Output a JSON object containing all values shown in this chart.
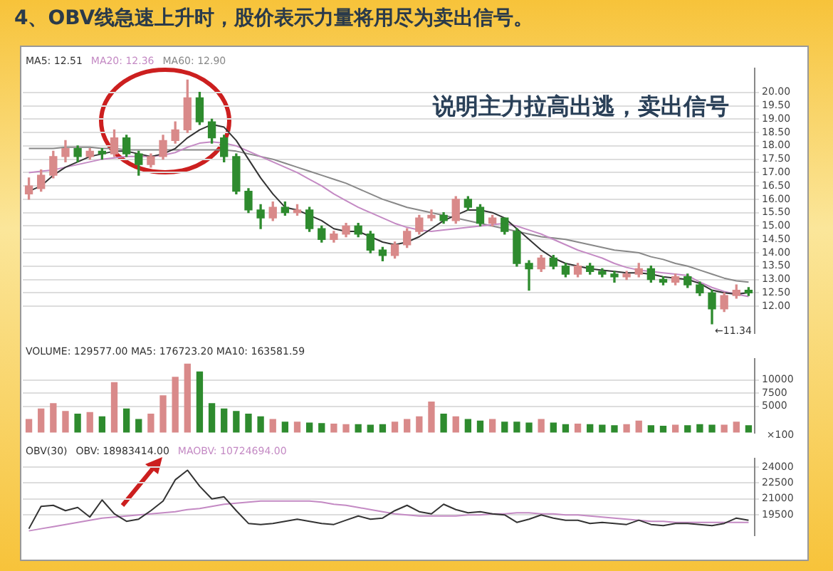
{
  "chart_data": [
    {
      "type": "candlestick",
      "title": "4、OBV线急速上升时，股价表示力量将用尽为卖出信号。",
      "subtitle": "说明主力拉高出逃，卖出信号",
      "categories": [
        null,
        null,
        null,
        null,
        null,
        null,
        null,
        null,
        null,
        null,
        null,
        null,
        null,
        null,
        null,
        null,
        null,
        null,
        null,
        null,
        null,
        null,
        null,
        null,
        null,
        null,
        null,
        null,
        null,
        null,
        null,
        null,
        null,
        null,
        null,
        null,
        null,
        null,
        null,
        null,
        null,
        null,
        null,
        null,
        null,
        null,
        null,
        null,
        null,
        null,
        null,
        null,
        null,
        null,
        null,
        null,
        null,
        null,
        null,
        null
      ],
      "ohlc": [
        [
          16.2,
          16.8,
          16.0,
          16.5
        ],
        [
          16.4,
          17.1,
          16.3,
          16.9
        ],
        [
          16.9,
          17.8,
          16.8,
          17.6
        ],
        [
          17.6,
          18.2,
          17.4,
          17.9
        ],
        [
          17.9,
          18.0,
          17.4,
          17.6
        ],
        [
          17.6,
          17.9,
          17.5,
          17.8
        ],
        [
          17.8,
          17.9,
          17.5,
          17.7
        ],
        [
          17.7,
          18.6,
          17.6,
          18.3
        ],
        [
          18.3,
          18.4,
          17.6,
          17.7
        ],
        [
          17.7,
          17.8,
          16.9,
          17.3
        ],
        [
          17.3,
          17.7,
          17.2,
          17.6
        ],
        [
          17.6,
          18.4,
          17.5,
          18.2
        ],
        [
          18.2,
          18.9,
          18.1,
          18.6
        ],
        [
          18.6,
          20.46,
          18.5,
          19.8
        ],
        [
          19.8,
          20.0,
          18.8,
          18.9
        ],
        [
          18.9,
          19.0,
          18.1,
          18.3
        ],
        [
          18.3,
          18.4,
          17.4,
          17.6
        ],
        [
          17.6,
          17.7,
          16.2,
          16.3
        ],
        [
          16.3,
          16.4,
          15.5,
          15.6
        ],
        [
          15.6,
          15.8,
          14.9,
          15.3
        ],
        [
          15.3,
          15.9,
          15.2,
          15.7
        ],
        [
          15.7,
          15.9,
          15.4,
          15.5
        ],
        [
          15.5,
          15.8,
          15.4,
          15.6
        ],
        [
          15.6,
          15.7,
          14.8,
          14.9
        ],
        [
          14.9,
          15.0,
          14.4,
          14.5
        ],
        [
          14.5,
          14.8,
          14.4,
          14.7
        ],
        [
          14.7,
          15.1,
          14.6,
          15.0
        ],
        [
          15.0,
          15.1,
          14.6,
          14.7
        ],
        [
          14.7,
          14.8,
          14.0,
          14.1
        ],
        [
          14.1,
          14.2,
          13.7,
          13.9
        ],
        [
          13.9,
          14.4,
          13.8,
          14.3
        ],
        [
          14.3,
          14.9,
          14.2,
          14.8
        ],
        [
          14.8,
          15.4,
          14.7,
          15.3
        ],
        [
          15.3,
          15.6,
          15.2,
          15.4
        ],
        [
          15.4,
          15.5,
          15.1,
          15.2
        ],
        [
          15.2,
          16.1,
          15.1,
          16.0
        ],
        [
          16.0,
          16.1,
          15.6,
          15.7
        ],
        [
          15.7,
          15.8,
          15.0,
          15.1
        ],
        [
          15.1,
          15.4,
          15.0,
          15.3
        ],
        [
          15.3,
          15.3,
          14.7,
          14.8
        ],
        [
          14.8,
          14.9,
          13.5,
          13.6
        ],
        [
          13.6,
          13.7,
          12.6,
          13.4
        ],
        [
          13.4,
          13.9,
          13.3,
          13.8
        ],
        [
          13.8,
          13.9,
          13.4,
          13.5
        ],
        [
          13.5,
          13.6,
          13.1,
          13.2
        ],
        [
          13.2,
          13.6,
          13.1,
          13.5
        ],
        [
          13.5,
          13.6,
          13.2,
          13.3
        ],
        [
          13.3,
          13.4,
          13.1,
          13.2
        ],
        [
          13.2,
          13.3,
          12.9,
          13.1
        ],
        [
          13.1,
          13.3,
          13.0,
          13.2
        ],
        [
          13.2,
          13.6,
          13.1,
          13.4
        ],
        [
          13.4,
          13.5,
          12.9,
          13.0
        ],
        [
          13.0,
          13.1,
          12.8,
          12.9
        ],
        [
          12.9,
          13.2,
          12.8,
          13.1
        ],
        [
          13.1,
          13.2,
          12.7,
          12.8
        ],
        [
          12.8,
          12.9,
          12.4,
          12.5
        ],
        [
          12.5,
          12.6,
          11.34,
          11.9
        ],
        [
          11.9,
          12.5,
          11.8,
          12.4
        ],
        [
          12.4,
          12.8,
          12.3,
          12.6
        ],
        [
          12.6,
          12.7,
          12.4,
          12.5
        ]
      ],
      "colors": [
        "#d98a8a",
        "#d98a8a",
        "#d98a8a",
        "#d98a8a",
        "#2e8b2e",
        "#d98a8a",
        "#2e8b2e",
        "#d98a8a",
        "#2e8b2e",
        "#2e8b2e",
        "#d98a8a",
        "#d98a8a",
        "#d98a8a",
        "#d98a8a",
        "#2e8b2e",
        "#2e8b2e",
        "#2e8b2e",
        "#2e8b2e",
        "#2e8b2e",
        "#2e8b2e",
        "#d98a8a",
        "#2e8b2e",
        "#d98a8a",
        "#2e8b2e",
        "#2e8b2e",
        "#d98a8a",
        "#d98a8a",
        "#2e8b2e",
        "#2e8b2e",
        "#2e8b2e",
        "#d98a8a",
        "#d98a8a",
        "#d98a8a",
        "#d98a8a",
        "#2e8b2e",
        "#d98a8a",
        "#2e8b2e",
        "#2e8b2e",
        "#d98a8a",
        "#2e8b2e",
        "#2e8b2e",
        "#2e8b2e",
        "#d98a8a",
        "#2e8b2e",
        "#2e8b2e",
        "#d98a8a",
        "#2e8b2e",
        "#2e8b2e",
        "#2e8b2e",
        "#d98a8a",
        "#d98a8a",
        "#2e8b2e",
        "#2e8b2e",
        "#d98a8a",
        "#2e8b2e",
        "#2e8b2e",
        "#2e8b2e",
        "#d98a8a",
        "#d98a8a",
        "#2e8b2e"
      ],
      "series": [
        {
          "name": "MA5: 12.51",
          "type": "line",
          "color": "#333333",
          "values": [
            16.3,
            16.5,
            16.9,
            17.2,
            17.4,
            17.6,
            17.7,
            17.8,
            17.8,
            17.7,
            17.6,
            17.7,
            17.9,
            18.3,
            18.6,
            18.8,
            18.7,
            18.2,
            17.5,
            16.8,
            16.2,
            15.7,
            15.6,
            15.4,
            15.2,
            14.9,
            14.8,
            14.8,
            14.6,
            14.4,
            14.3,
            14.4,
            14.6,
            14.9,
            15.2,
            15.4,
            15.6,
            15.6,
            15.5,
            15.3,
            14.9,
            14.5,
            14.1,
            13.8,
            13.6,
            13.5,
            13.4,
            13.35,
            13.3,
            13.25,
            13.25,
            13.2,
            13.1,
            13.05,
            13.0,
            12.85,
            12.6,
            12.5,
            12.45,
            12.51
          ]
        },
        {
          "name": "MA20: 12.36",
          "type": "line",
          "color": "#c48ac4",
          "values": [
            17.0,
            17.05,
            17.1,
            17.2,
            17.3,
            17.4,
            17.5,
            17.55,
            17.6,
            17.6,
            17.6,
            17.65,
            17.75,
            17.95,
            18.1,
            18.15,
            18.1,
            18.0,
            17.8,
            17.6,
            17.4,
            17.2,
            17.0,
            16.75,
            16.5,
            16.2,
            15.95,
            15.7,
            15.5,
            15.3,
            15.1,
            14.95,
            14.85,
            14.8,
            14.85,
            14.9,
            14.95,
            15.0,
            15.05,
            15.1,
            15.0,
            14.85,
            14.7,
            14.5,
            14.3,
            14.1,
            13.95,
            13.8,
            13.6,
            13.45,
            13.35,
            13.3,
            13.25,
            13.2,
            13.15,
            12.9,
            12.7,
            12.55,
            12.45,
            12.36
          ]
        },
        {
          "name": "MA60: 12.90",
          "type": "line",
          "color": "#888888",
          "values": [
            17.9,
            17.9,
            17.9,
            17.95,
            17.95,
            17.95,
            17.9,
            17.9,
            17.85,
            17.85,
            17.85,
            17.85,
            17.85,
            17.85,
            17.85,
            17.85,
            17.85,
            17.8,
            17.7,
            17.6,
            17.5,
            17.35,
            17.2,
            17.05,
            16.9,
            16.75,
            16.6,
            16.4,
            16.2,
            16.0,
            15.85,
            15.7,
            15.6,
            15.5,
            15.4,
            15.3,
            15.2,
            15.1,
            15.0,
            14.9,
            14.8,
            14.7,
            14.6,
            14.55,
            14.5,
            14.4,
            14.3,
            14.2,
            14.1,
            14.05,
            14.0,
            13.85,
            13.75,
            13.6,
            13.5,
            13.35,
            13.2,
            13.05,
            12.95,
            12.9
          ]
        }
      ],
      "annotations": [
        "←11.34"
      ],
      "ylim": [
        11.0,
        20.9
      ],
      "yticks": [
        {
          "value": 12,
          "label": "12.00"
        },
        {
          "value": 12.5,
          "label": "12.50"
        },
        {
          "value": 13,
          "label": "13.00"
        },
        {
          "value": 13.5,
          "label": "13.50"
        },
        {
          "value": 14,
          "label": "14.00"
        },
        {
          "value": 14.5,
          "label": "14.50"
        },
        {
          "value": 15,
          "label": "15.00"
        },
        {
          "value": 15.5,
          "label": "15.50"
        },
        {
          "value": 16,
          "label": "16.00"
        },
        {
          "value": 16.5,
          "label": "16.50"
        },
        {
          "value": 17,
          "label": "17.00"
        },
        {
          "value": 17.5,
          "label": "17.50"
        },
        {
          "value": 18,
          "label": "18.00"
        },
        {
          "value": 18.5,
          "label": "18.50"
        },
        {
          "value": 19,
          "label": "19.00"
        },
        {
          "value": 19.5,
          "label": "19.50"
        },
        {
          "value": 20,
          "label": "20.00"
        }
      ],
      "grid": "y",
      "legend": "top left",
      "tick_labels": "y",
      "marker": "none"
    },
    {
      "type": "bar",
      "ylabel": "×100",
      "categories": [
        null,
        null,
        null,
        null,
        null,
        null,
        null,
        null,
        null,
        null,
        null,
        null,
        null,
        null,
        null,
        null,
        null,
        null,
        null,
        null,
        null,
        null,
        null,
        null,
        null,
        null,
        null,
        null,
        null,
        null,
        null,
        null,
        null,
        null,
        null,
        null,
        null,
        null,
        null,
        null,
        null,
        null,
        null,
        null,
        null,
        null,
        null,
        null,
        null,
        null,
        null,
        null,
        null,
        null,
        null,
        null,
        null,
        null,
        null,
        null
      ],
      "values": [
        2500,
        4500,
        5500,
        4000,
        3500,
        3800,
        3000,
        9500,
        4500,
        2500,
        3500,
        7000,
        10500,
        13000,
        11500,
        5500,
        4500,
        4000,
        3500,
        3000,
        2500,
        2000,
        2000,
        1800,
        1700,
        1600,
        1500,
        1500,
        1400,
        1500,
        2000,
        2500,
        3000,
        5800,
        3500,
        3000,
        2500,
        2200,
        2500,
        2000,
        2000,
        1800,
        2500,
        1800,
        1500,
        1600,
        1500,
        1400,
        1300,
        1500,
        2200,
        1300,
        1200,
        1400,
        1300,
        1500,
        1400,
        1400,
        2000,
        1300
      ],
      "colors": [
        "#d98a8a",
        "#d98a8a",
        "#d98a8a",
        "#d98a8a",
        "#2e8b2e",
        "#d98a8a",
        "#2e8b2e",
        "#d98a8a",
        "#2e8b2e",
        "#2e8b2e",
        "#d98a8a",
        "#d98a8a",
        "#d98a8a",
        "#d98a8a",
        "#2e8b2e",
        "#2e8b2e",
        "#2e8b2e",
        "#2e8b2e",
        "#2e8b2e",
        "#2e8b2e",
        "#d98a8a",
        "#2e8b2e",
        "#d98a8a",
        "#2e8b2e",
        "#2e8b2e",
        "#d98a8a",
        "#d98a8a",
        "#2e8b2e",
        "#2e8b2e",
        "#2e8b2e",
        "#d98a8a",
        "#d98a8a",
        "#d98a8a",
        "#d98a8a",
        "#2e8b2e",
        "#d98a8a",
        "#2e8b2e",
        "#2e8b2e",
        "#d98a8a",
        "#2e8b2e",
        "#2e8b2e",
        "#2e8b2e",
        "#d98a8a",
        "#2e8b2e",
        "#2e8b2e",
        "#d98a8a",
        "#2e8b2e",
        "#2e8b2e",
        "#2e8b2e",
        "#d98a8a",
        "#d98a8a",
        "#2e8b2e",
        "#2e8b2e",
        "#d98a8a",
        "#2e8b2e",
        "#2e8b2e",
        "#2e8b2e",
        "#d98a8a",
        "#d98a8a",
        "#2e8b2e"
      ],
      "annotations": [
        "VOLUME: 129577.00 MA5: 176723.20 MA10: 163581.59"
      ],
      "ylim": [
        0,
        14000
      ],
      "yticks": [
        5000,
        7500,
        10000
      ],
      "grid": "y",
      "tick_labels": "y"
    },
    {
      "type": "line",
      "title": "OBV(30)",
      "categories": [
        null,
        null,
        null,
        null,
        null,
        null,
        null,
        null,
        null,
        null,
        null,
        null,
        null,
        null,
        null,
        null,
        null,
        null,
        null,
        null,
        null,
        null,
        null,
        null,
        null,
        null,
        null,
        null,
        null,
        null,
        null,
        null,
        null,
        null,
        null,
        null,
        null,
        null,
        null,
        null,
        null,
        null,
        null,
        null,
        null,
        null,
        null,
        null,
        null,
        null,
        null,
        null,
        null,
        null,
        null,
        null,
        null,
        null,
        null,
        null
      ],
      "series": [
        {
          "name": "OBV: 18983414.00",
          "color": "#333333",
          "values": [
            18200,
            20300,
            20400,
            19900,
            20200,
            19300,
            20900,
            19600,
            18900,
            19100,
            19900,
            20800,
            22800,
            23700,
            22200,
            21000,
            21200,
            19900,
            18700,
            18600,
            18700,
            18900,
            19100,
            18900,
            18700,
            18600,
            19000,
            19400,
            19100,
            19200,
            19900,
            20400,
            19800,
            19600,
            20500,
            20000,
            19700,
            19800,
            19600,
            19500,
            18800,
            19100,
            19500,
            19200,
            19000,
            19000,
            18700,
            18800,
            18700,
            18600,
            19000,
            18600,
            18500,
            18700,
            18700,
            18600,
            18500,
            18700,
            19200,
            19000
          ]
        },
        {
          "name": "MAOBV: 10724694.00",
          "color": "#c48ac4",
          "values": [
            18000,
            18200,
            18400,
            18600,
            18800,
            19000,
            19200,
            19300,
            19400,
            19500,
            19600,
            19700,
            19800,
            20000,
            20100,
            20300,
            20500,
            20600,
            20700,
            20800,
            20800,
            20800,
            20800,
            20800,
            20700,
            20500,
            20400,
            20200,
            20000,
            19800,
            19600,
            19500,
            19400,
            19400,
            19400,
            19400,
            19500,
            19500,
            19600,
            19600,
            19700,
            19700,
            19600,
            19600,
            19500,
            19500,
            19400,
            19300,
            19200,
            19100,
            19000,
            18900,
            18900,
            18800,
            18800,
            18800,
            18800,
            18800,
            18800,
            18800
          ]
        }
      ],
      "ylim": [
        17600,
        24800
      ],
      "yticks": [
        19500,
        21000,
        22500,
        24000
      ],
      "grid": "y",
      "legend": "top left",
      "tick_labels": "y",
      "marker": "none"
    }
  ]
}
